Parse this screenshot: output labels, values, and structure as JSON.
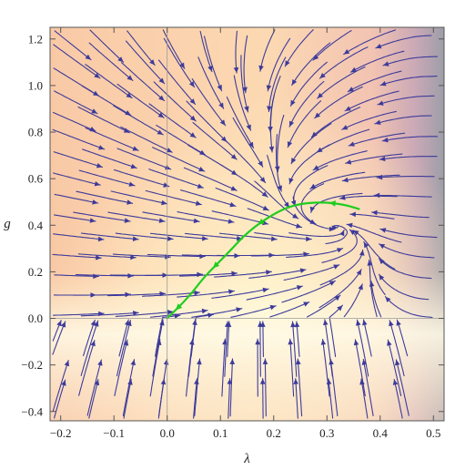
{
  "chart_data": {
    "type": "streamplot",
    "title": "",
    "xlabel": "λ",
    "ylabel": "g",
    "xlim": [
      -0.22,
      0.52
    ],
    "ylim": [
      -0.44,
      1.25
    ],
    "xticks": [
      -0.2,
      -0.1,
      0.0,
      0.1,
      0.2,
      0.3,
      0.4,
      0.5
    ],
    "xtick_labels": [
      "−0.2",
      "−0.1",
      "0.0",
      "0.1",
      "0.2",
      "0.3",
      "0.4",
      "0.5"
    ],
    "yticks": [
      -0.4,
      -0.2,
      0.0,
      0.2,
      0.4,
      0.6,
      0.8,
      1.0,
      1.2
    ],
    "ytick_labels": [
      "−0.4",
      "−0.2",
      "0.0",
      "0.2",
      "0.4",
      "0.6",
      "0.8",
      "1.0",
      "1.2"
    ],
    "grid": false,
    "reference_lines": {
      "x": 0,
      "y": 0
    },
    "fixed_points": [
      {
        "lambda": 0.0,
        "g": 0.0
      },
      {
        "lambda": 0.33,
        "g": 0.43
      }
    ],
    "highlighted_trajectory": {
      "color": "#1fcc1f",
      "points": [
        [
          0.36,
          0.47
        ],
        [
          0.33,
          0.49
        ],
        [
          0.29,
          0.5
        ],
        [
          0.24,
          0.49
        ],
        [
          0.2,
          0.45
        ],
        [
          0.15,
          0.37
        ],
        [
          0.11,
          0.27
        ],
        [
          0.07,
          0.18
        ],
        [
          0.04,
          0.09
        ],
        [
          0.0,
          0.0
        ]
      ]
    },
    "stream_color": "#3d3a9a",
    "background": "density shading, orange/yellow to grey near λ = 0.5"
  }
}
